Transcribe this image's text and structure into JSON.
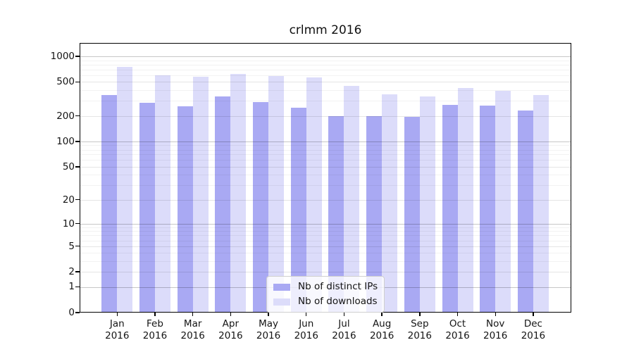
{
  "chart_data": {
    "type": "bar",
    "title": "crlmm 2016",
    "xlabel": "",
    "ylabel": "",
    "months": [
      "Jan",
      "Feb",
      "Mar",
      "Apr",
      "May",
      "Jun",
      "Jul",
      "Aug",
      "Sep",
      "Oct",
      "Nov",
      "Dec"
    ],
    "year": "2016",
    "categories": [
      "Jan 2016",
      "Feb 2016",
      "Mar 2016",
      "Apr 2016",
      "May 2016",
      "Jun 2016",
      "Jul 2016",
      "Aug 2016",
      "Sep 2016",
      "Oct 2016",
      "Nov 2016",
      "Dec 2016"
    ],
    "series": [
      {
        "name": "Nb of distinct IPs",
        "color": "#a9a9f3",
        "values": [
          352,
          286,
          258,
          337,
          288,
          249,
          199,
          198,
          196,
          269,
          262,
          232
        ]
      },
      {
        "name": "Nb of downloads",
        "color": "#dcdcfa",
        "values": [
          752,
          601,
          576,
          617,
          586,
          563,
          453,
          359,
          335,
          423,
          392,
          350
        ]
      }
    ],
    "yscale": "log1p",
    "yticks": [
      0,
      1,
      2,
      5,
      10,
      20,
      50,
      100,
      200,
      500,
      1000
    ],
    "ylim": [
      0,
      1434
    ],
    "grid": "on",
    "legend_position": "lower-center",
    "colors": {
      "grid_decade": "rgba(0,0,0,0.22)",
      "grid_labeled": "rgba(0,0,0,0.10)",
      "grid_minor": "rgba(0,0,0,0.05)",
      "axis": "#000000"
    }
  }
}
